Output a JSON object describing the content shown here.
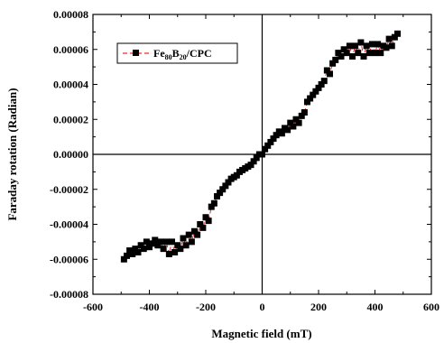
{
  "chart_data": {
    "type": "scatter",
    "title": "",
    "xlabel": "Magnetic field (mT)",
    "ylabel": "Faraday rotation (Radian)",
    "xlim": [
      -600,
      600
    ],
    "ylim": [
      -8e-05,
      8e-05
    ],
    "x_ticks": [
      "-600",
      "-400",
      "-200",
      "0",
      "200",
      "400",
      "600"
    ],
    "y_ticks": [
      "-0.00008",
      "-0.00006",
      "-0.00004",
      "-0.00002",
      "0.00000",
      "0.00002",
      "0.00004",
      "0.00006",
      "0.00008"
    ],
    "zero_lines": true,
    "grid": false,
    "legend_position": "top-left",
    "series": [
      {
        "name": "Fe80B20/CPC",
        "legend_parts": {
          "base1": "Fe",
          "sub1": "80",
          "base2": "B",
          "sub2": "20",
          "rest": "/CPC"
        },
        "marker": "square",
        "marker_color": "#000000",
        "line_color": "#e03030",
        "line_style": "dashed",
        "x": [
          -490,
          -480,
          -470,
          -460,
          -450,
          -440,
          -430,
          -420,
          -410,
          -400,
          -390,
          -380,
          -370,
          -360,
          -350,
          -340,
          -330,
          -320,
          -310,
          -300,
          -290,
          -280,
          -270,
          -260,
          -250,
          -240,
          -230,
          -220,
          -210,
          -200,
          -190,
          -180,
          -170,
          -160,
          -150,
          -140,
          -130,
          -120,
          -110,
          -100,
          -90,
          -80,
          -70,
          -60,
          -50,
          -40,
          -30,
          -20,
          -10,
          0,
          10,
          20,
          30,
          40,
          50,
          60,
          70,
          80,
          90,
          100,
          110,
          120,
          130,
          140,
          150,
          160,
          170,
          180,
          190,
          200,
          210,
          220,
          230,
          240,
          250,
          260,
          270,
          280,
          290,
          300,
          310,
          320,
          330,
          340,
          350,
          360,
          370,
          380,
          390,
          400,
          410,
          420,
          430,
          440,
          450,
          460,
          470,
          480
        ],
        "y": [
          -6e-05,
          -5.8e-05,
          -5.5e-05,
          -5.7e-05,
          -5.4e-05,
          -5.6e-05,
          -5.2e-05,
          -5.4e-05,
          -5e-05,
          -5.3e-05,
          -5.1e-05,
          -4.9e-05,
          -5.2e-05,
          -5e-05,
          -5.4e-05,
          -5e-05,
          -5.7e-05,
          -5e-05,
          -5.6e-05,
          -5.2e-05,
          -5.4e-05,
          -4.8e-05,
          -5.2e-05,
          -4.6e-05,
          -5e-05,
          -4.4e-05,
          -4.6e-05,
          -4e-05,
          -4.2e-05,
          -3.6e-05,
          -3.8e-05,
          -3e-05,
          -2.8e-05,
          -2.4e-05,
          -2.2e-05,
          -2e-05,
          -1.8e-05,
          -1.6e-05,
          -1.4e-05,
          -1.3e-05,
          -1.2e-05,
          -1e-05,
          -9e-06,
          -8e-06,
          -7e-06,
          -6e-06,
          -4e-06,
          -2e-06,
          0.0,
          0.0,
          3e-06,
          5e-06,
          7e-06,
          9e-06,
          1.1e-05,
          1.3e-05,
          1.2e-05,
          1.5e-05,
          1.4e-05,
          1.8e-05,
          1.6e-05,
          2e-05,
          1.8e-05,
          2.2e-05,
          2.4e-05,
          3e-05,
          3.2e-05,
          3.4e-05,
          3.6e-05,
          3.8e-05,
          4e-05,
          4.2e-05,
          4.8e-05,
          4.6e-05,
          5.2e-05,
          5.4e-05,
          5.8e-05,
          5.6e-05,
          6e-05,
          5.8e-05,
          6.2e-05,
          5.6e-05,
          6.2e-05,
          5.8e-05,
          6.4e-05,
          5.6e-05,
          6.2e-05,
          5.8e-05,
          6.3e-05,
          5.8e-05,
          6.3e-05,
          5.8e-05,
          6.2e-05,
          6.1e-05,
          6.6e-05,
          6.2e-05,
          6.7e-05,
          6.9e-05
        ]
      }
    ]
  }
}
